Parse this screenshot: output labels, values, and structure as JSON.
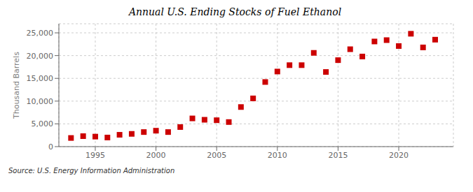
{
  "chart_data": {
    "type": "scatter",
    "title": "Annual U.S. Ending Stocks of Fuel Ethanol",
    "ylabel": "Thousand Barrels",
    "annotations": [
      "Source: U.S. Energy Information Administration"
    ],
    "x": [
      1993,
      1994,
      1995,
      1996,
      1997,
      1998,
      1999,
      2000,
      2001,
      2002,
      2003,
      2004,
      2005,
      2006,
      2007,
      2008,
      2009,
      2010,
      2011,
      2012,
      2013,
      2014,
      2015,
      2016,
      2017,
      2018,
      2019,
      2020,
      2021,
      2022,
      2023
    ],
    "values": [
      1900,
      2300,
      2200,
      2000,
      2600,
      2800,
      3200,
      3500,
      3200,
      4300,
      6200,
      5900,
      5800,
      5400,
      8700,
      10600,
      14200,
      16500,
      17900,
      17900,
      20600,
      16400,
      19000,
      21400,
      19800,
      23100,
      23400,
      22100,
      24800,
      21800,
      23500
    ],
    "color": "#cc0000",
    "marker": "square",
    "xlim": [
      1992,
      2024.5
    ],
    "xticks": [
      1995,
      2000,
      2005,
      2010,
      2015,
      2020
    ],
    "ylim": [
      0,
      27000
    ],
    "yticks": [
      0,
      {
        "value": 5000,
        "label": "5,000"
      },
      {
        "value": 10000,
        "label": "10,000"
      },
      {
        "value": 15000,
        "label": "15,000"
      },
      {
        "value": 20000,
        "label": "20,000"
      },
      {
        "value": 25000,
        "label": "25,000"
      }
    ],
    "grid": true
  }
}
